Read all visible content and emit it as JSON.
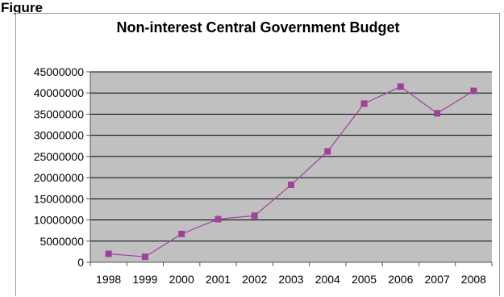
{
  "figure_label": "Figure",
  "chart_data": {
    "type": "line",
    "title": "Non-interest Central Government Budget",
    "xlabel": "",
    "ylabel": "",
    "categories": [
      "1998",
      "1999",
      "2000",
      "2001",
      "2002",
      "2003",
      "2004",
      "2005",
      "2006",
      "2007",
      "2008"
    ],
    "series": [
      {
        "values": [
          2000000,
          1300000,
          6700000,
          10200000,
          11000000,
          18300000,
          26200000,
          37500000,
          41500000,
          35200000,
          40500000
        ],
        "color": "#a0409a"
      }
    ],
    "ylim": [
      0,
      45000000
    ],
    "y_ticks": [
      0,
      5000000,
      10000000,
      15000000,
      20000000,
      25000000,
      30000000,
      35000000,
      40000000,
      45000000
    ],
    "y_tick_labels": [
      "0",
      "5000000",
      "10000000",
      "15000000",
      "20000000",
      "25000000",
      "30000000",
      "35000000",
      "40000000",
      "45000000"
    ],
    "grid": true,
    "legend": "none",
    "plot_background": "#c0c0c0"
  }
}
